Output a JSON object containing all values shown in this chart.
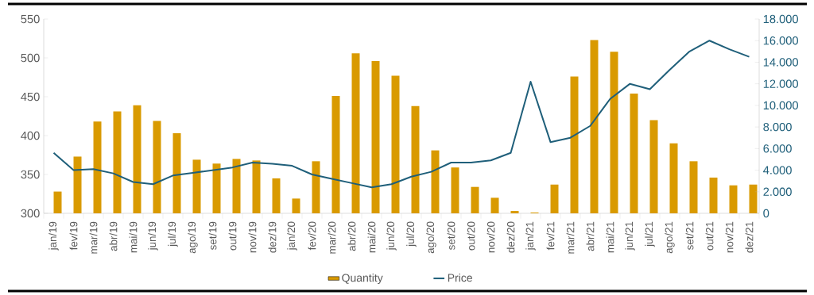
{
  "chart_data": {
    "type": "bar",
    "categories": [
      "jan/19",
      "fev/19",
      "mar/19",
      "abr/19",
      "mai/19",
      "jun/19",
      "jul/19",
      "ago/19",
      "set/19",
      "out/19",
      "nov/19",
      "dez/19",
      "jan/20",
      "fev/20",
      "mar/20",
      "abr/20",
      "mai/20",
      "jun/20",
      "jul/20",
      "ago/20",
      "set/20",
      "out/20",
      "nov/20",
      "dez/20",
      "jan/21",
      "fev/21",
      "mar/21",
      "abr/21",
      "mai/21",
      "jun/21",
      "jul/21",
      "ago/21",
      "set/21",
      "out/21",
      "nov/21",
      "dez/21"
    ],
    "series": [
      {
        "name": "Quantity",
        "color": "#d99a00",
        "values": [
          328,
          373,
          418,
          431,
          439,
          419,
          403,
          369,
          364,
          370,
          368,
          345,
          319,
          367,
          451,
          506,
          496,
          477,
          438,
          381,
          359,
          334,
          320,
          303,
          301,
          337,
          476,
          523,
          508,
          454,
          420,
          390,
          367,
          346,
          336,
          337
        ]
      },
      {
        "name": "Price",
        "type": "line",
        "axis": "y2",
        "color": "#1f5f7a",
        "values": [
          5600,
          4000,
          4100,
          3700,
          2900,
          2700,
          3500,
          3750,
          4000,
          4250,
          4700,
          4600,
          4400,
          3600,
          3200,
          2800,
          2400,
          2700,
          3400,
          3850,
          4700,
          4700,
          4900,
          5600,
          12200,
          6600,
          7000,
          8100,
          10600,
          12000,
          11500,
          13300,
          15000,
          16000,
          15200,
          14500
        ]
      }
    ],
    "ylim": [
      300,
      550
    ],
    "yticks": [
      300,
      350,
      400,
      450,
      500,
      550
    ],
    "y2lim": [
      0,
      18000
    ],
    "y2ticks": [
      0,
      {
        "value": 2000,
        "label": "2.000"
      },
      {
        "value": 4000,
        "label": "4.000"
      },
      {
        "value": 6000,
        "label": "6.000"
      },
      {
        "value": 8000,
        "label": "8.000"
      },
      {
        "value": 10000,
        "label": "10.000"
      },
      {
        "value": 12000,
        "label": "12.000"
      },
      {
        "value": 14000,
        "label": "14.000"
      },
      {
        "value": 16000,
        "label": "16.000"
      },
      {
        "value": 18000,
        "label": "18.000"
      }
    ],
    "legend": "bottom"
  }
}
